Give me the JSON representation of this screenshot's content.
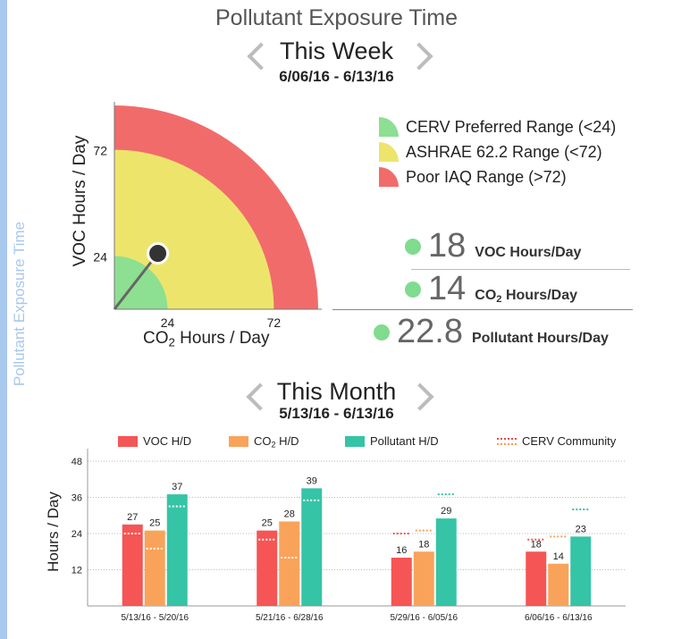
{
  "sidebar": {
    "label": "Pollutant Exposure Time"
  },
  "header": {
    "title": "Pollutant Exposure Time"
  },
  "week": {
    "period_label": "This Week",
    "date_range": "6/06/16 - 6/13/16",
    "gauge": {
      "y_label": "VOC Hours / Day",
      "x_label_prefix": "CO",
      "x_label_sub": "2",
      "x_label_suffix": " Hours / Day",
      "ticks": [
        "24",
        "72"
      ],
      "tick_values": [
        24,
        72
      ],
      "max": 92,
      "indicator": {
        "co2": 14,
        "voc": 18
      },
      "colors": {
        "green": "#8ddf92",
        "yellow": "#ede56b",
        "red": "#f26b6b"
      }
    },
    "legend": [
      {
        "label": "CERV Preferred Range (<24)",
        "color": "#8ddf92"
      },
      {
        "label": "ASHRAE 62.2 Range (<72)",
        "color": "#ede56b"
      },
      {
        "label": "Poor IAQ Range (>72)",
        "color": "#f26b6b"
      }
    ],
    "stats": {
      "voc": {
        "value": "18",
        "label": "VOC Hours/Day"
      },
      "co2": {
        "value": "14",
        "label_prefix": "CO",
        "label_sub": "2",
        "label_suffix": " Hours/Day"
      },
      "pollutant": {
        "value": "22.8",
        "label": "Pollutant Hours/Day"
      }
    }
  },
  "month": {
    "period_label": "This Month",
    "date_range": "5/13/16 - 6/13/16",
    "legend": {
      "voc": "VOC H/D",
      "co2_prefix": "CO",
      "co2_sub": "2",
      "co2_suffix": " H/D",
      "pollutant": "Pollutant H/D",
      "community": "CERV Community"
    }
  },
  "chart_data": {
    "type": "bar",
    "ylabel": "Hours / Day",
    "ylim": [
      0,
      48
    ],
    "yticks": [
      12,
      24,
      36,
      48
    ],
    "grid": true,
    "legend_position": "top",
    "categories": [
      "5/13/16 - 5/20/16",
      "5/21/16 - 6/28/16",
      "5/29/16 - 6/05/16",
      "6/06/16 - 6/13/16"
    ],
    "series": [
      {
        "name": "VOC H/D",
        "color": "#f55555",
        "values": [
          27,
          25,
          16,
          18
        ],
        "community": [
          24,
          22,
          24,
          22
        ]
      },
      {
        "name": "CO2 H/D",
        "color": "#f9a35a",
        "values": [
          25,
          28,
          18,
          14
        ],
        "community": [
          19,
          16,
          25,
          23
        ]
      },
      {
        "name": "Pollutant H/D",
        "color": "#35c4a6",
        "values": [
          37,
          39,
          29,
          23
        ],
        "community": [
          33,
          35,
          37,
          32
        ]
      }
    ],
    "community_label": "CERV Community"
  }
}
